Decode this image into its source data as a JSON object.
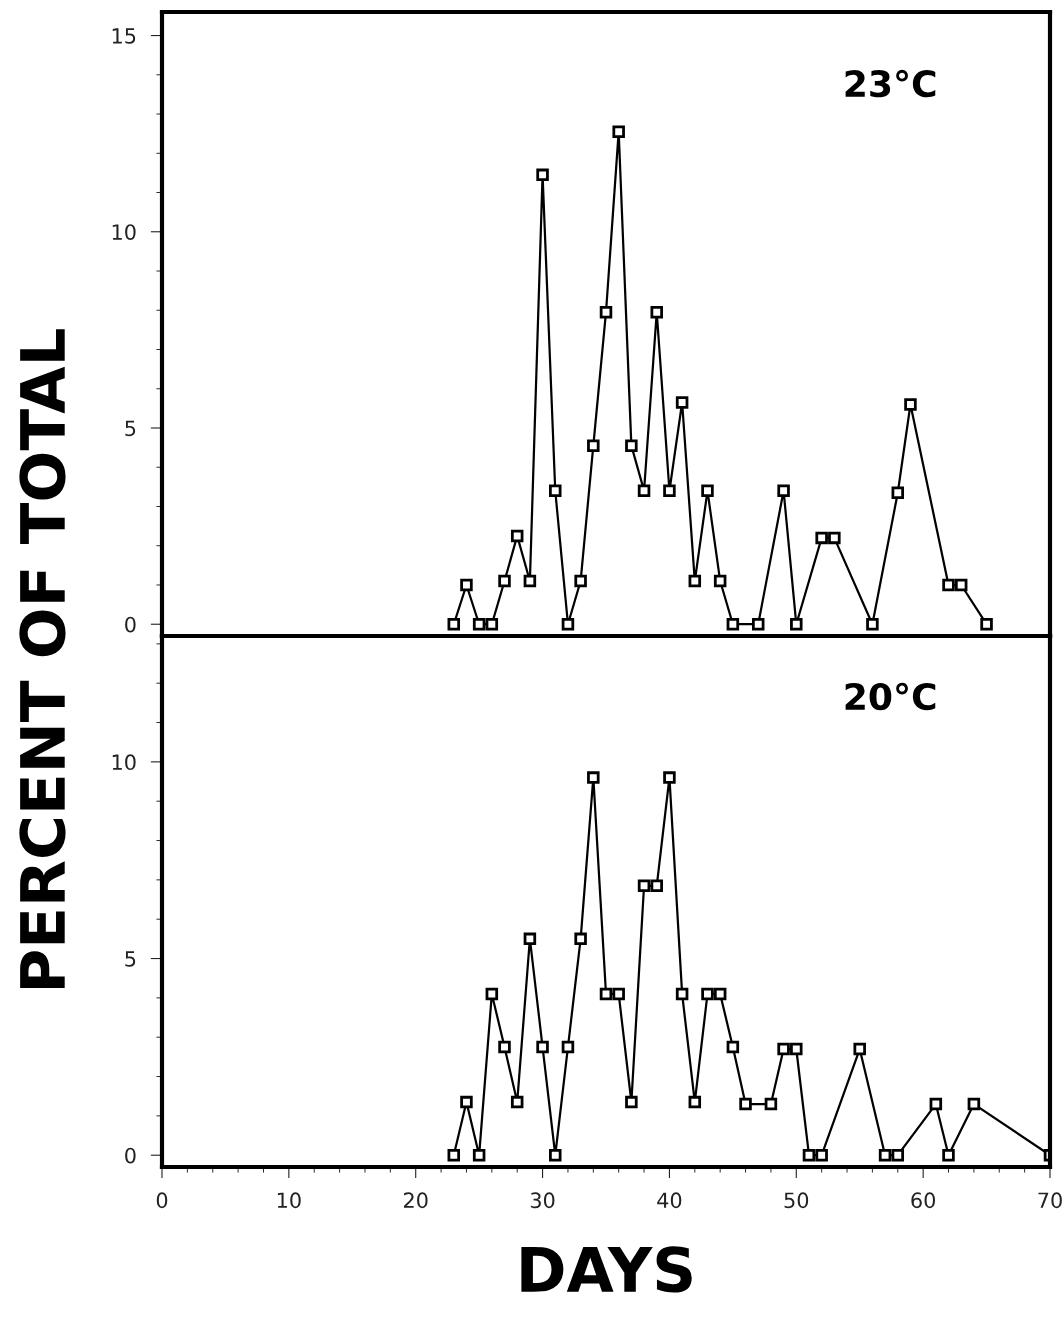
{
  "chart_data": [
    {
      "type": "line",
      "ylabel": "PERCENT OF TOTAL",
      "annotations": [
        "23°C"
      ],
      "xlim": [
        0,
        70
      ],
      "xticks": [
        0,
        10,
        20,
        30,
        40,
        50,
        60,
        70
      ],
      "ylim": [
        -0.3,
        15.6
      ],
      "yticks": [
        0,
        5,
        10,
        15
      ],
      "tick_labels": "y",
      "marker": "square",
      "line_style": "solid",
      "grid": false,
      "legend": false,
      "series": [
        {
          "color": "#000000",
          "x": [
            23,
            24,
            25,
            26,
            27,
            28,
            29,
            30,
            31,
            32,
            33,
            34,
            35,
            36,
            37,
            38,
            39,
            40,
            41,
            42,
            43,
            44,
            45,
            47,
            49,
            50,
            52,
            53,
            56,
            58,
            59,
            62,
            63,
            65
          ],
          "values": [
            0,
            1.0,
            0,
            0,
            1.1,
            2.25,
            1.1,
            11.45,
            3.4,
            0,
            1.1,
            4.55,
            7.95,
            12.55,
            4.55,
            3.4,
            7.95,
            3.4,
            5.65,
            1.1,
            3.4,
            1.1,
            0,
            0,
            3.4,
            0,
            2.2,
            2.2,
            0,
            3.35,
            5.6,
            1.0,
            1.0,
            0
          ]
        }
      ]
    },
    {
      "type": "line",
      "xlabel": "DAYS",
      "annotations": [
        "20°C"
      ],
      "xlim": [
        0,
        70
      ],
      "xticks": [
        0,
        10,
        20,
        30,
        40,
        50,
        60,
        70
      ],
      "ylim": [
        -0.3,
        13.2
      ],
      "yticks": [
        0,
        5,
        10
      ],
      "marker": "square",
      "line_style": "solid",
      "grid": false,
      "legend": false,
      "series": [
        {
          "color": "#000000",
          "x": [
            23,
            24,
            25,
            26,
            27,
            28,
            29,
            30,
            31,
            32,
            33,
            34,
            35,
            36,
            37,
            38,
            39,
            40,
            41,
            42,
            43,
            44,
            45,
            46,
            48,
            49,
            50,
            51,
            52,
            55,
            57,
            58,
            61,
            62,
            64,
            70
          ],
          "values": [
            0,
            1.35,
            0,
            4.1,
            2.75,
            1.35,
            5.5,
            2.75,
            0,
            2.75,
            5.5,
            9.6,
            4.1,
            4.1,
            1.35,
            6.85,
            6.85,
            9.6,
            4.1,
            1.35,
            4.1,
            4.1,
            2.75,
            1.3,
            1.3,
            2.7,
            2.7,
            0,
            0,
            2.7,
            0,
            0,
            1.3,
            0,
            1.3,
            0
          ]
        }
      ]
    }
  ]
}
